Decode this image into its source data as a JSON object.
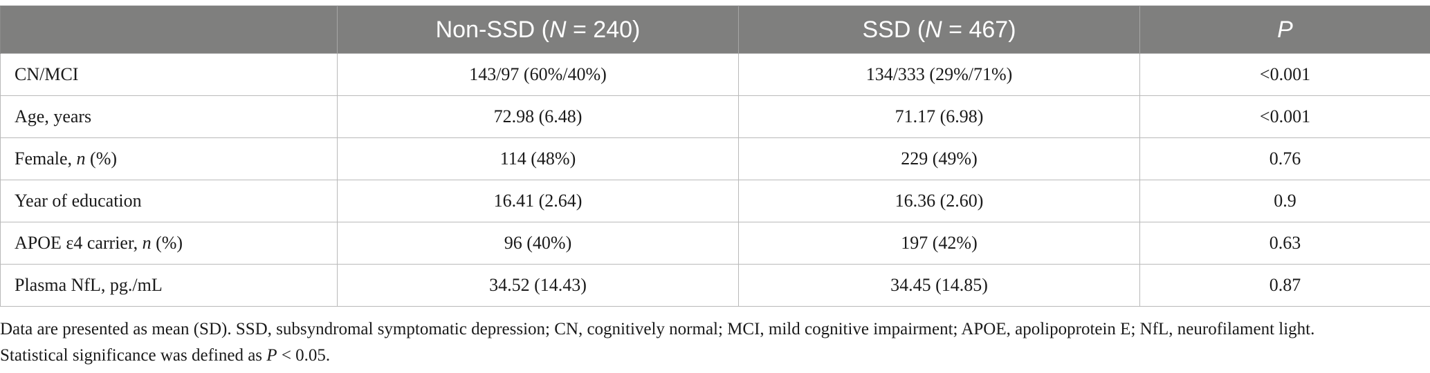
{
  "table": {
    "headers": [
      {
        "text": "",
        "prefix": "",
        "italic": "",
        "suffix": ""
      },
      {
        "prefix": "Non-SSD (",
        "italic": "N",
        "suffix": " = 240)"
      },
      {
        "prefix": "SSD (",
        "italic": "N",
        "suffix": " = 467)"
      },
      {
        "prefix": "",
        "italic": "P",
        "suffix": ""
      }
    ],
    "rows": [
      {
        "label_pre": "CN/MCI",
        "label_it": "",
        "label_post": "",
        "non_ssd": "143/97 (60%/40%)",
        "ssd": "134/333 (29%/71%)",
        "p": "<0.001"
      },
      {
        "label_pre": "Age, years",
        "label_it": "",
        "label_post": "",
        "non_ssd": "72.98 (6.48)",
        "ssd": "71.17 (6.98)",
        "p": "<0.001"
      },
      {
        "label_pre": "Female, ",
        "label_it": "n",
        "label_post": " (%)",
        "non_ssd": "114 (48%)",
        "ssd": "229 (49%)",
        "p": "0.76"
      },
      {
        "label_pre": "Year of education",
        "label_it": "",
        "label_post": "",
        "non_ssd": "16.41 (2.64)",
        "ssd": "16.36 (2.60)",
        "p": "0.9"
      },
      {
        "label_pre": "APOE ε4 carrier, ",
        "label_it": "n",
        "label_post": " (%)",
        "non_ssd": "96 (40%)",
        "ssd": "197 (42%)",
        "p": "0.63"
      },
      {
        "label_pre": "Plasma NfL, pg./mL",
        "label_it": "",
        "label_post": "",
        "non_ssd": "34.52 (14.43)",
        "ssd": "34.45 (14.85)",
        "p": "0.87"
      }
    ]
  },
  "footnote": {
    "line1": "Data are presented as mean (SD). SSD, subsyndromal symptomatic depression; CN, cognitively normal; MCI, mild cognitive impairment; APOE, apolipoprotein E; NfL, neurofilament light.",
    "line2_pre": "Statistical significance was defined as ",
    "line2_it": "P",
    "line2_post": " < 0.05."
  }
}
